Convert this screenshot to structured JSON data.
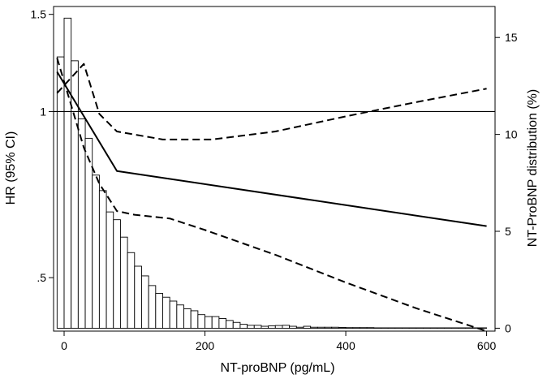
{
  "chart_data": {
    "type": "line",
    "title": "",
    "xlabel": "NT-proBNP (pg/mL)",
    "ylabel_left": "HR (95% CI)",
    "ylabel_right": "NT-ProBNP distribution (%)",
    "x_range": [
      -15,
      612
    ],
    "x_ticks": [
      0,
      200,
      400,
      600
    ],
    "y_left_scale": "log",
    "y_left_range": [
      0.4,
      1.55
    ],
    "y_left_ticks": [
      {
        "value": 0.5,
        "label": ".5"
      },
      {
        "value": 1,
        "label": "1"
      },
      {
        "value": 1.5,
        "label": "1.5"
      }
    ],
    "y_right_range": [
      -0.15,
      16.6
    ],
    "y_right_ticks": [
      0,
      5,
      10,
      15
    ],
    "reference_line_hr": 1,
    "grid": false,
    "legend": "none",
    "histogram": {
      "axis": "right",
      "bin_width": 10,
      "bin_starts": [
        -10,
        0,
        10,
        20,
        30,
        40,
        50,
        60,
        70,
        80,
        90,
        100,
        110,
        120,
        130,
        140,
        150,
        160,
        170,
        180,
        190,
        200,
        210,
        220,
        230,
        240,
        250,
        260,
        270,
        280,
        290,
        300,
        310,
        320,
        330,
        340,
        350,
        360,
        370,
        380,
        390,
        400,
        410,
        420,
        430,
        440,
        450,
        460,
        470,
        480,
        490,
        500,
        510,
        520,
        530,
        540,
        550,
        560,
        570,
        580,
        590
      ],
      "values": [
        14.0,
        16.0,
        13.8,
        10.8,
        9.8,
        7.9,
        7.1,
        6.0,
        5.6,
        4.7,
        3.9,
        3.2,
        2.7,
        2.2,
        1.8,
        1.6,
        1.4,
        1.2,
        1.0,
        0.9,
        0.7,
        0.6,
        0.6,
        0.5,
        0.4,
        0.3,
        0.2,
        0.15,
        0.15,
        0.1,
        0.12,
        0.14,
        0.15,
        0.1,
        0.05,
        0.1,
        0.05,
        0.05,
        0.05,
        0.05,
        0.04,
        0.03,
        0.03,
        0.03,
        0.03,
        0.02,
        0.02,
        0.02,
        0.02,
        0.02,
        0.02,
        0.02,
        0.02,
        0.02,
        0.02,
        0.02,
        0.02,
        0.02,
        0.02,
        0.02,
        0.02
      ]
    },
    "series": [
      {
        "style": "solid",
        "axis": "left",
        "x": [
          -10,
          75,
          600
        ],
        "y": [
          1.18,
          0.78,
          0.62
        ]
      },
      {
        "style": "dashed",
        "axis": "left",
        "x": [
          -10,
          28,
          50,
          75,
          140,
          210,
          300,
          400,
          500,
          600
        ],
        "y": [
          1.08,
          1.22,
          0.99,
          0.92,
          0.89,
          0.89,
          0.92,
          0.98,
          1.04,
          1.1
        ]
      },
      {
        "style": "dashed",
        "axis": "left",
        "x": [
          -10,
          28,
          50,
          75,
          100,
          150,
          200,
          300,
          400,
          500,
          600
        ],
        "y": [
          1.25,
          0.86,
          0.74,
          0.66,
          0.65,
          0.64,
          0.61,
          0.55,
          0.49,
          0.44,
          0.4
        ]
      }
    ]
  }
}
